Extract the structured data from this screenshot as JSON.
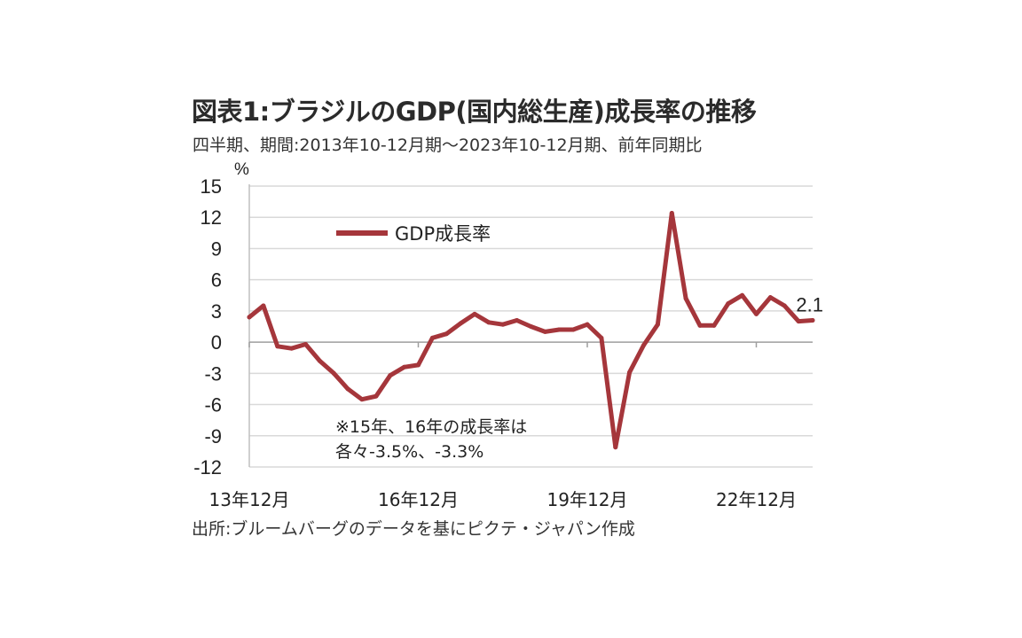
{
  "title": "図表1:ブラジルのGDP(国内総生産)成長率の推移",
  "subtitle": "四半期、期間:2013年10-12月期～2023年10-12月期、前年同期比",
  "source": "出所:ブルームバーグのデータを基にピクテ・ジャパン作成",
  "chart_data": {
    "type": "line",
    "title": "図表1:ブラジルのGDP(国内総生産)成長率の推移",
    "ylabel": "%",
    "ylim": [
      -12,
      15
    ],
    "yticks": [
      15,
      12,
      9,
      6,
      3,
      0,
      -3,
      -6,
      -9,
      -12
    ],
    "xtick_labels": [
      "13年12月",
      "16年12月",
      "19年12月",
      "22年12月"
    ],
    "xtick_index": [
      0,
      12,
      24,
      36
    ],
    "grid": true,
    "legend_position": "top-left",
    "color": "#a5363b",
    "series": [
      {
        "name": "GDP成長率",
        "x": [
          "13年12月",
          "14年3月",
          "14年6月",
          "14年9月",
          "14年12月",
          "15年3月",
          "15年6月",
          "15年9月",
          "15年12月",
          "16年3月",
          "16年6月",
          "16年9月",
          "16年12月",
          "17年3月",
          "17年6月",
          "17年9月",
          "17年12月",
          "18年3月",
          "18年6月",
          "18年9月",
          "18年12月",
          "19年3月",
          "19年6月",
          "19年9月",
          "19年12月",
          "20年3月",
          "20年6月",
          "20年9月",
          "20年12月",
          "21年3月",
          "21年6月",
          "21年9月",
          "21年12月",
          "22年3月",
          "22年6月",
          "22年9月",
          "22年12月",
          "23年3月",
          "23年6月",
          "23年9月",
          "23年12月"
        ],
        "values": [
          2.4,
          3.5,
          -0.4,
          -0.6,
          -0.2,
          -1.8,
          -3.0,
          -4.5,
          -5.5,
          -5.2,
          -3.2,
          -2.4,
          -2.2,
          0.4,
          0.8,
          1.8,
          2.7,
          1.9,
          1.7,
          2.1,
          1.5,
          1.0,
          1.2,
          1.2,
          1.7,
          0.4,
          -10.1,
          -2.9,
          -0.3,
          1.7,
          12.4,
          4.2,
          1.6,
          1.6,
          3.7,
          4.5,
          2.7,
          4.3,
          3.5,
          2.0,
          2.1
        ]
      }
    ],
    "end_label": "2.1",
    "annotation_lines": [
      "※15年、16年の成長率は",
      "各々-3.5%、-3.3%"
    ]
  }
}
